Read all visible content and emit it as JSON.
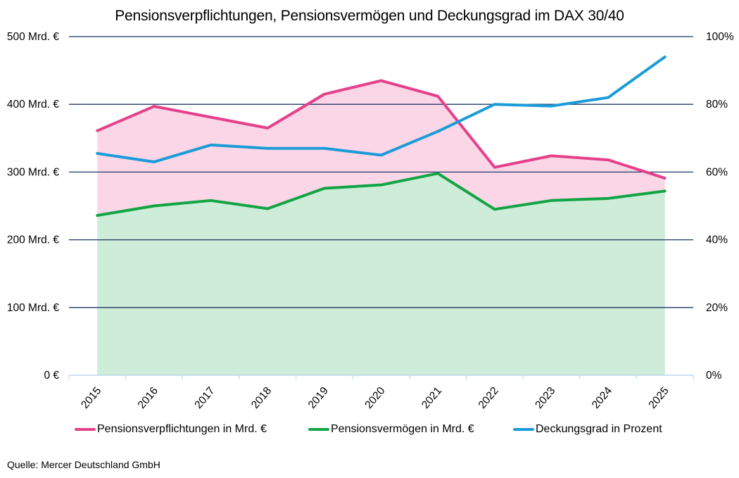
{
  "chart_data": {
    "type": "line",
    "title": "Pensionsverpflichtungen, Pensionsvermögen und Deckungsgrad im DAX 30/40",
    "categories": [
      "2015",
      "2016",
      "2017",
      "2018",
      "2019",
      "2020",
      "2021",
      "2022",
      "2023",
      "2024",
      "2025"
    ],
    "series": [
      {
        "name": "Pensionsverpflichtungen in Mrd. €",
        "axis": "left",
        "color": "#E4418A",
        "fill": "#FBD6E7",
        "values": [
          361,
          397,
          381,
          365,
          415,
          435,
          412,
          307,
          324,
          318,
          291
        ]
      },
      {
        "name": "Pensionsvermögen in Mrd. €",
        "axis": "left",
        "color": "#13A445",
        "fill": "#CDEDD8",
        "values": [
          236,
          250,
          258,
          246,
          276,
          281,
          298,
          245,
          258,
          261,
          272
        ]
      },
      {
        "name": "Deckungsgrad in Prozent",
        "axis": "right",
        "color": "#1C9BD8",
        "values": [
          65.5,
          63,
          68,
          67,
          67,
          65,
          72,
          80,
          79.5,
          82,
          94
        ]
      }
    ],
    "left_axis": {
      "min": 0,
      "max": 500,
      "ticks": [
        "0 €",
        "100 Mrd. €",
        "200 Mrd. €",
        "300 Mrd. €",
        "400 Mrd. €",
        "500 Mrd. €"
      ],
      "tick_values": [
        0,
        100,
        200,
        300,
        400,
        500
      ]
    },
    "right_axis": {
      "min": 0,
      "max": 100,
      "ticks": [
        "0%",
        "20%",
        "40%",
        "60%",
        "80%",
        "100%"
      ],
      "tick_values": [
        0,
        20,
        40,
        60,
        80,
        100
      ]
    },
    "grid": true,
    "gridline_color": "#1F3864",
    "axis_line_color": "#BDD7EE",
    "legend_position": "bottom"
  },
  "source": "Quelle: Mercer Deutschland GmbH"
}
